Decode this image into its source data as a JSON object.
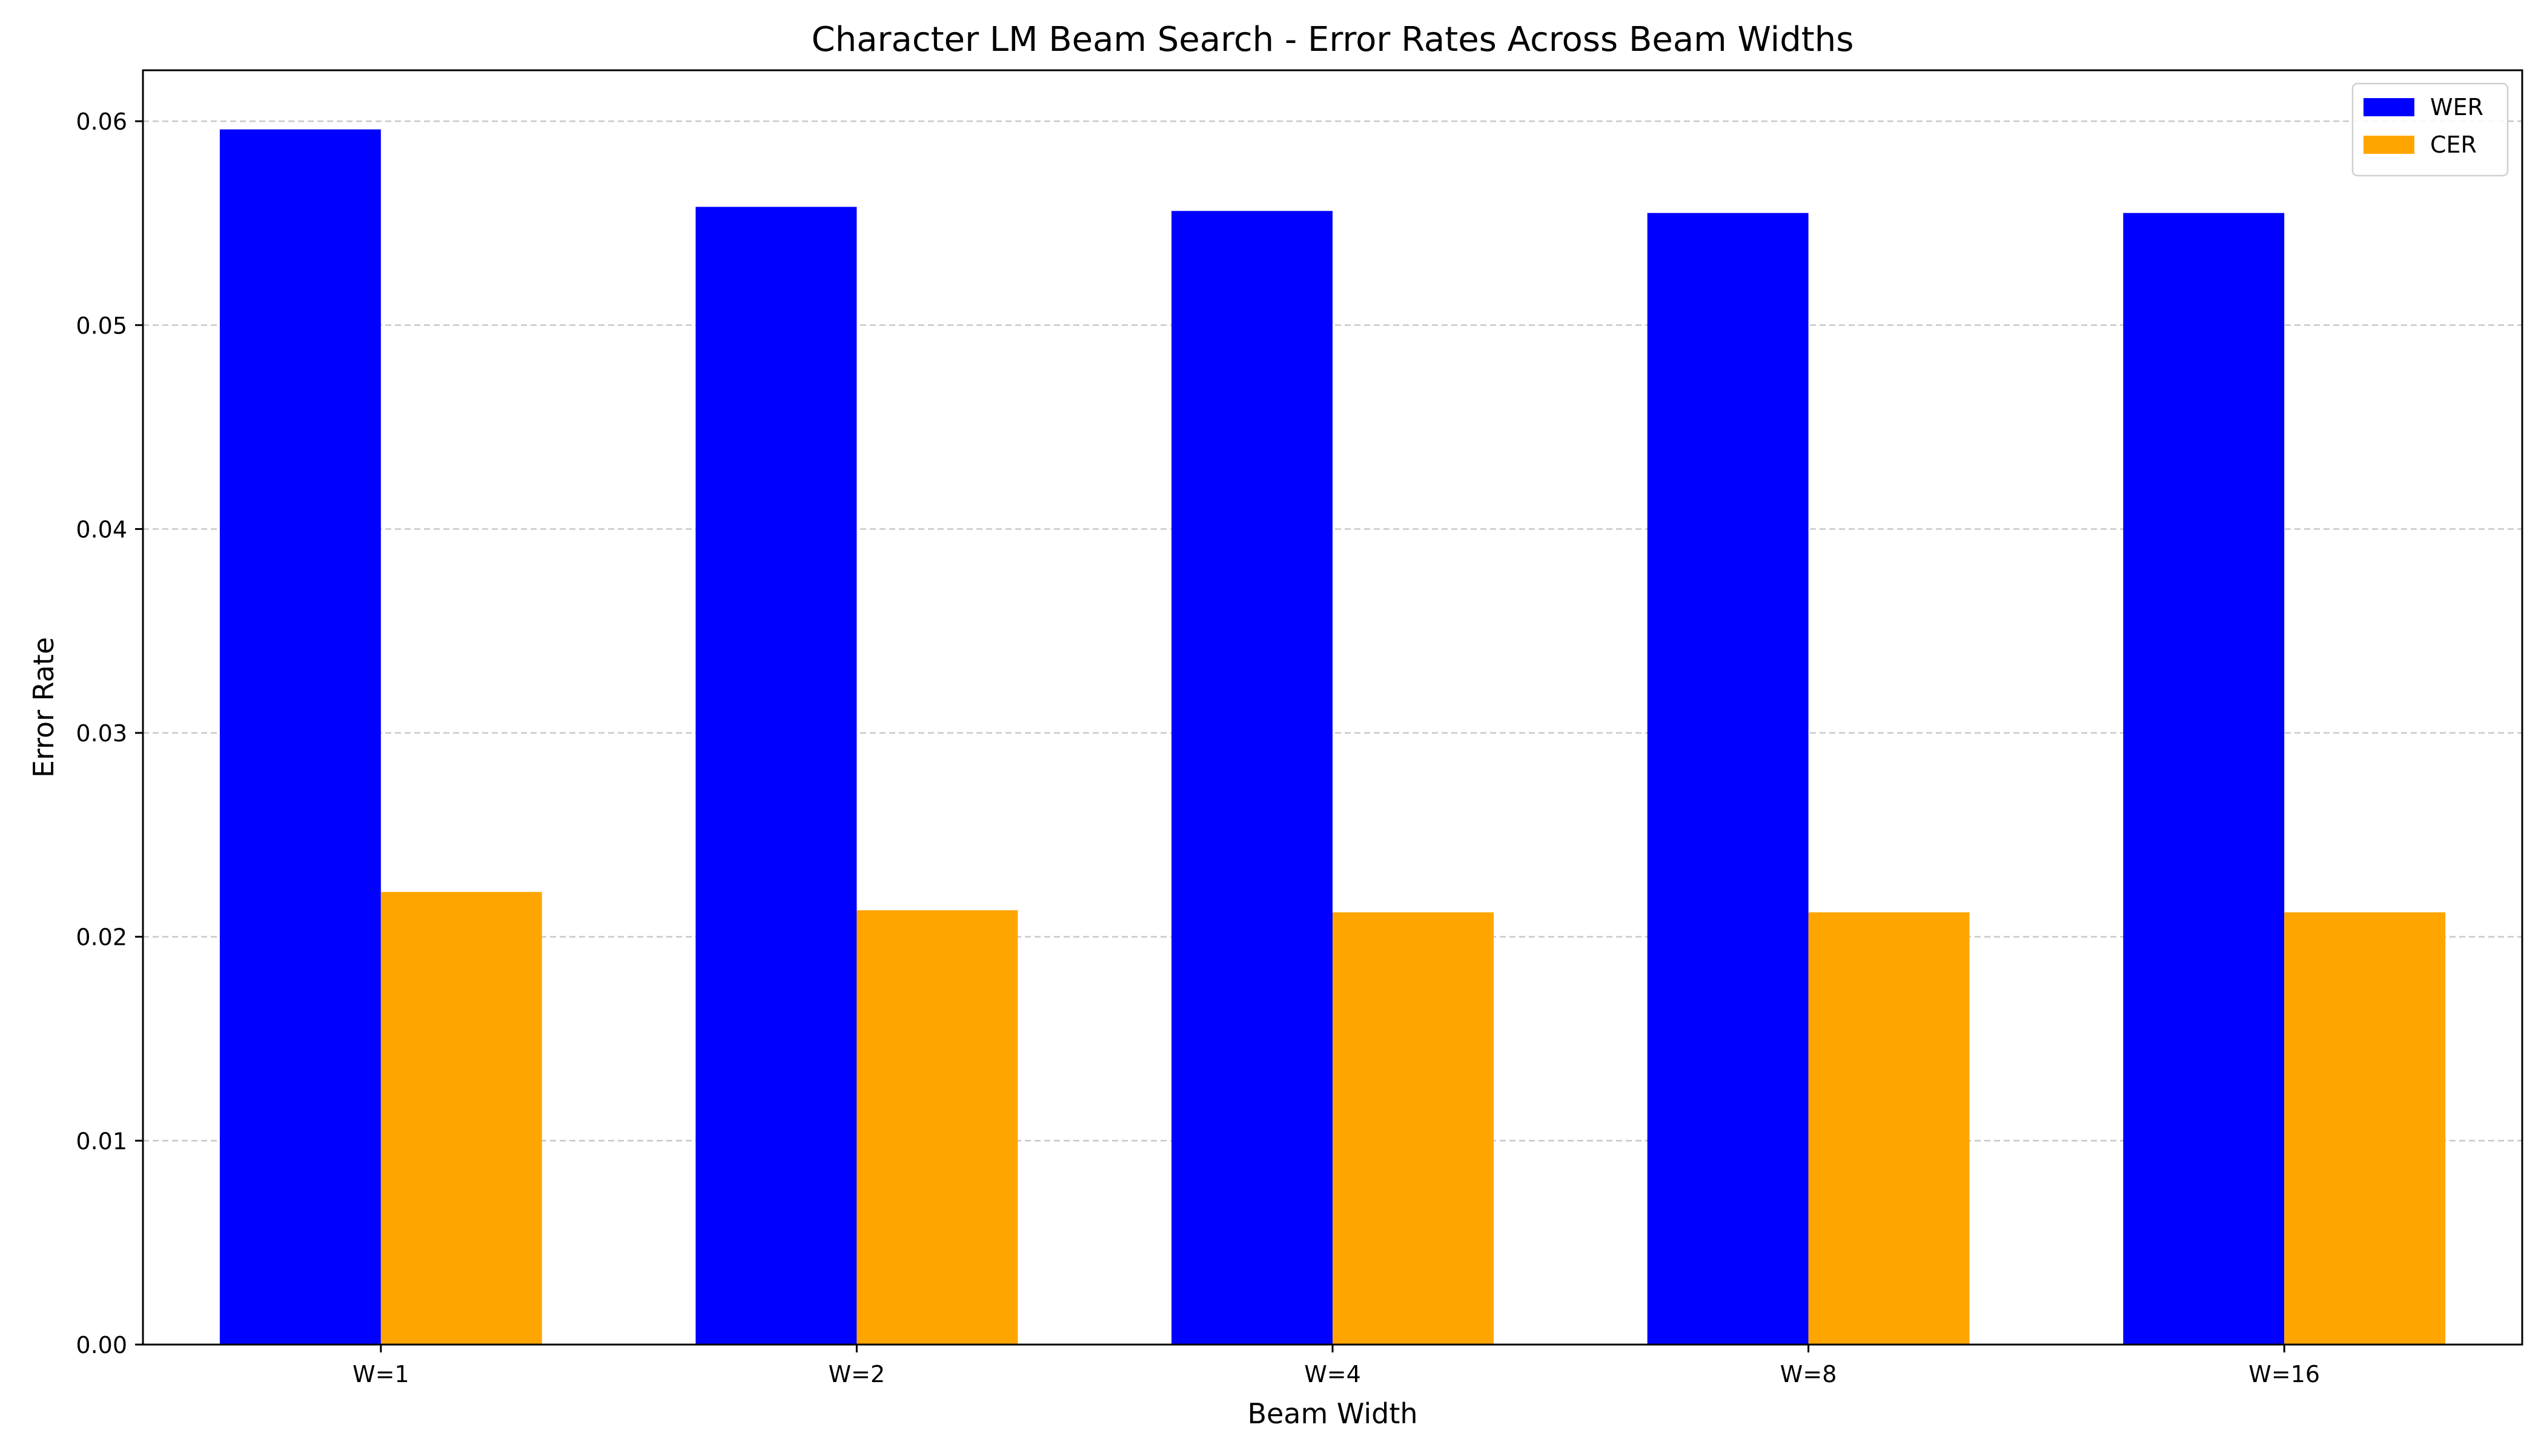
{
  "chart_data": {
    "type": "bar",
    "title": "Character LM Beam Search - Error Rates Across Beam Widths",
    "xlabel": "Beam Width",
    "ylabel": "Error Rate",
    "categories": [
      "W=1",
      "W=2",
      "W=4",
      "W=8",
      "W=16"
    ],
    "series": [
      {
        "name": "WER",
        "color": "#0000ff",
        "values": [
          0.0596,
          0.0558,
          0.0556,
          0.0555,
          0.0555
        ]
      },
      {
        "name": "CER",
        "color": "#ffa500",
        "values": [
          0.0222,
          0.0213,
          0.0212,
          0.0212,
          0.0212
        ]
      }
    ],
    "ylim": [
      0,
      0.0625
    ],
    "yticks": [
      0.0,
      0.01,
      0.02,
      0.03,
      0.04,
      0.05,
      0.06
    ],
    "ytick_labels": [
      "0.00",
      "0.01",
      "0.02",
      "0.03",
      "0.04",
      "0.05",
      "0.06"
    ],
    "grid": {
      "y": true,
      "style": "dashed",
      "color": "#c8c8c8"
    },
    "legend": {
      "position": "upper-right"
    }
  }
}
